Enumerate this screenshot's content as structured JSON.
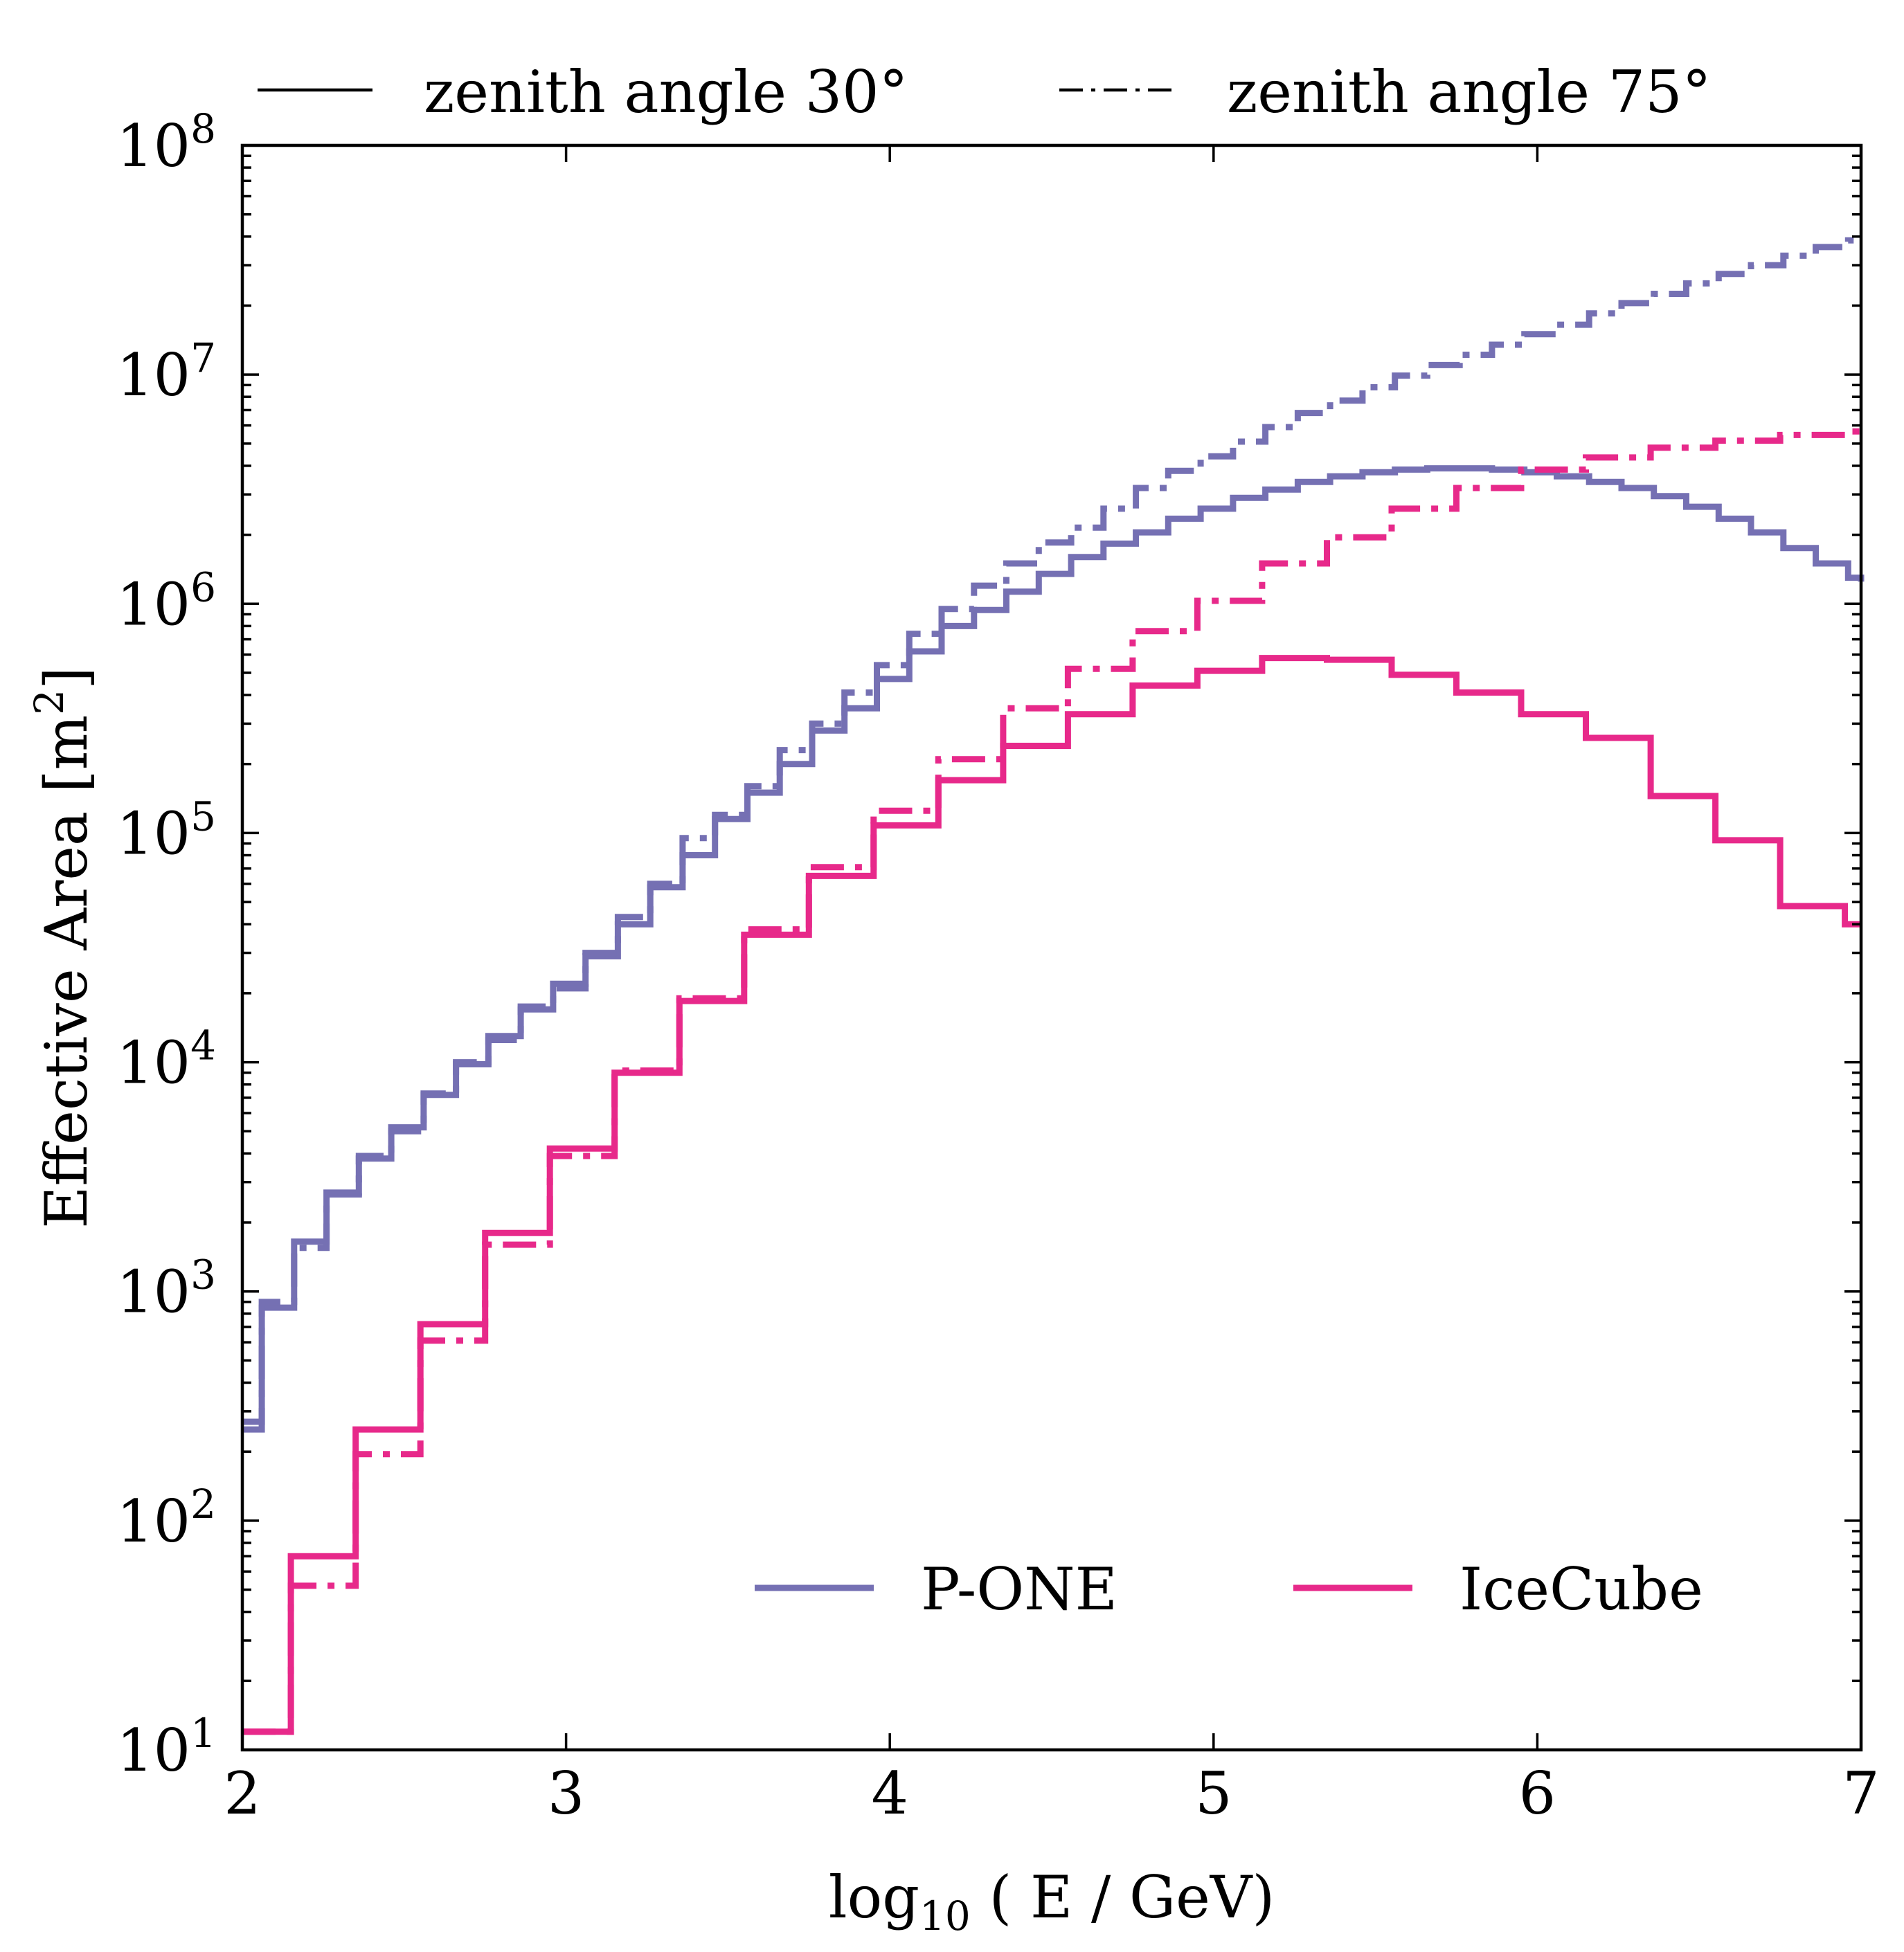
{
  "chart_data": {
    "type": "line",
    "style": "step",
    "title": "",
    "xlabel": "log10 ( E / GeV)",
    "xlabel_parts": {
      "base": "log",
      "sub": "10",
      "rest": " ( E / GeV)"
    },
    "ylabel": "Effective Area [m2]",
    "ylabel_parts": {
      "base": "Effective Area [m",
      "sup": "2",
      "close": "]"
    },
    "xlim": [
      2,
      7
    ],
    "ylim": [
      10,
      100000000
    ],
    "yscale": "log",
    "x_ticks": [
      {
        "value": 2,
        "label": "2"
      },
      {
        "value": 3,
        "label": "3"
      },
      {
        "value": 4,
        "label": "4"
      },
      {
        "value": 5,
        "label": "5"
      },
      {
        "value": 6,
        "label": "6"
      },
      {
        "value": 7,
        "label": "7"
      }
    ],
    "y_ticks": [
      {
        "exp": 1,
        "base": "10",
        "sup": "1"
      },
      {
        "exp": 2,
        "base": "10",
        "sup": "2"
      },
      {
        "exp": 3,
        "base": "10",
        "sup": "3"
      },
      {
        "exp": 4,
        "base": "10",
        "sup": "4"
      },
      {
        "exp": 5,
        "base": "10",
        "sup": "5"
      },
      {
        "exp": 6,
        "base": "10",
        "sup": "6"
      },
      {
        "exp": 7,
        "base": "10",
        "sup": "7"
      },
      {
        "exp": 8,
        "base": "10",
        "sup": "8"
      }
    ],
    "legend_top": {
      "placement": "above-plot",
      "entries": [
        {
          "label": "zenith angle 30°",
          "linestyle": "solid"
        },
        {
          "label": "zenith angle 75°",
          "linestyle": "dashdot"
        }
      ]
    },
    "legend_bottom": {
      "placement": "lower-right",
      "entries": [
        {
          "label": "P-ONE",
          "color": "#7570b3"
        },
        {
          "label": "IceCube",
          "color": "#e7298a"
        }
      ]
    },
    "series": [
      {
        "name": "P-ONE zenith angle 30°",
        "color": "#7570b3",
        "linestyle": "solid",
        "x": [
          2.0,
          2.06,
          2.16,
          2.26,
          2.36,
          2.46,
          2.56,
          2.66,
          2.76,
          2.86,
          2.96,
          3.06,
          3.16,
          3.26,
          3.36,
          3.46,
          3.56,
          3.66,
          3.76,
          3.86,
          3.96,
          4.06,
          4.16,
          4.26,
          4.36,
          4.46,
          4.56,
          4.66,
          4.76,
          4.86,
          4.96,
          5.06,
          5.16,
          5.26,
          5.36,
          5.46,
          5.56,
          5.66,
          5.76,
          5.86,
          5.96,
          6.06,
          6.16,
          6.26,
          6.36,
          6.46,
          6.56,
          6.66,
          6.76,
          6.86,
          6.96,
          7.0
        ],
        "y": [
          250,
          850,
          1650,
          2700,
          3800,
          5200,
          7200,
          9800,
          13000,
          17000,
          22000,
          29000,
          40000,
          58000,
          80000,
          115000,
          150000,
          200000,
          280000,
          350000,
          470000,
          620000,
          800000,
          940000,
          1130000,
          1350000,
          1600000,
          1830000,
          2050000,
          2350000,
          2600000,
          2900000,
          3150000,
          3400000,
          3600000,
          3750000,
          3850000,
          3900000,
          3900000,
          3850000,
          3750000,
          3600000,
          3400000,
          3200000,
          2950000,
          2650000,
          2350000,
          2050000,
          1750000,
          1500000,
          1300000,
          1250000
        ]
      },
      {
        "name": "P-ONE zenith angle 75°",
        "color": "#7570b3",
        "linestyle": "dashdot",
        "x": [
          2.0,
          2.06,
          2.16,
          2.26,
          2.36,
          2.46,
          2.56,
          2.66,
          2.76,
          2.86,
          2.96,
          3.06,
          3.16,
          3.26,
          3.36,
          3.46,
          3.56,
          3.66,
          3.76,
          3.86,
          3.96,
          4.06,
          4.16,
          4.26,
          4.36,
          4.46,
          4.56,
          4.66,
          4.76,
          4.86,
          4.96,
          5.06,
          5.16,
          5.26,
          5.36,
          5.46,
          5.56,
          5.66,
          5.76,
          5.86,
          5.96,
          6.06,
          6.16,
          6.26,
          6.36,
          6.46,
          6.56,
          6.66,
          6.76,
          6.86,
          6.96,
          7.0
        ],
        "y": [
          270,
          900,
          1550,
          2650,
          3900,
          5000,
          7300,
          10000,
          12500,
          17500,
          21000,
          30000,
          43000,
          60000,
          95000,
          120000,
          160000,
          230000,
          300000,
          410000,
          540000,
          740000,
          950000,
          1200000,
          1500000,
          1850000,
          2150000,
          2600000,
          3200000,
          3800000,
          4400000,
          5100000,
          5900000,
          6800000,
          7700000,
          8800000,
          9900000,
          11000000,
          12200000,
          13500000,
          15000000,
          16500000,
          18500000,
          20500000,
          22500000,
          25000000,
          27500000,
          30000000,
          33000000,
          36000000,
          38500000,
          39500000
        ]
      },
      {
        "name": "IceCube zenith angle 30°",
        "color": "#e7298a",
        "linestyle": "solid",
        "x": [
          2.0,
          2.15,
          2.35,
          2.55,
          2.75,
          2.95,
          3.15,
          3.35,
          3.55,
          3.75,
          3.95,
          4.15,
          4.35,
          4.55,
          4.75,
          4.95,
          5.15,
          5.35,
          5.55,
          5.75,
          5.95,
          6.15,
          6.35,
          6.55,
          6.75,
          6.95,
          7.0
        ],
        "y": [
          12,
          70,
          250,
          720,
          1800,
          4200,
          9000,
          18500,
          36000,
          65000,
          108000,
          170000,
          240000,
          330000,
          440000,
          510000,
          580000,
          570000,
          490000,
          410000,
          330000,
          260000,
          145000,
          93000,
          48000,
          40000,
          40000
        ]
      },
      {
        "name": "IceCube zenith angle 75°",
        "color": "#e7298a",
        "linestyle": "dashdot",
        "x": [
          2.0,
          2.15,
          2.35,
          2.55,
          2.75,
          2.95,
          3.15,
          3.35,
          3.55,
          3.75,
          3.95,
          4.15,
          4.35,
          4.55,
          4.75,
          4.95,
          5.15,
          5.35,
          5.55,
          5.75,
          5.95,
          6.15,
          6.35,
          6.55,
          6.75,
          6.95,
          7.0
        ],
        "y": [
          12,
          52,
          195,
          610,
          1600,
          3900,
          9200,
          19000,
          38000,
          71000,
          125000,
          210000,
          350000,
          520000,
          760000,
          1030000,
          1500000,
          1950000,
          2600000,
          3200000,
          3850000,
          4350000,
          4800000,
          5150000,
          5450000,
          5650000,
          6000000
        ]
      }
    ]
  }
}
